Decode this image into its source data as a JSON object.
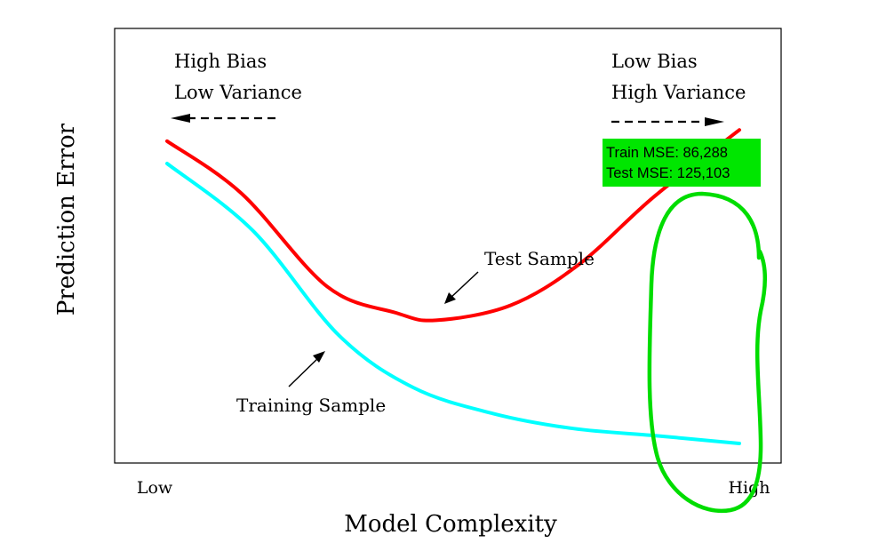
{
  "chart_data": {
    "type": "line",
    "xlabel": "Model Complexity",
    "ylabel": "Prediction Error",
    "x_ticks": [
      "Low",
      "High"
    ],
    "series": [
      {
        "name": "Test Sample",
        "color": "#ff0000",
        "points": [
          [
            0.0,
            0.86
          ],
          [
            0.13,
            0.72
          ],
          [
            0.28,
            0.47
          ],
          [
            0.4,
            0.4
          ],
          [
            0.47,
            0.38
          ],
          [
            0.6,
            0.42
          ],
          [
            0.72,
            0.53
          ],
          [
            0.85,
            0.71
          ],
          [
            1.0,
            0.89
          ]
        ]
      },
      {
        "name": "Training Sample",
        "color": "#00ffff",
        "points": [
          [
            0.0,
            0.8
          ],
          [
            0.15,
            0.62
          ],
          [
            0.3,
            0.34
          ],
          [
            0.43,
            0.2
          ],
          [
            0.57,
            0.13
          ],
          [
            0.71,
            0.09
          ],
          [
            0.86,
            0.07
          ],
          [
            1.0,
            0.05
          ]
        ]
      }
    ],
    "annotations": {
      "left_title_line1": "High Bias",
      "left_title_line2": "Low Variance",
      "right_title_line1": "Low Bias",
      "right_title_line2": "High Variance",
      "test_label": "Test Sample",
      "train_label": "Training Sample"
    },
    "mse_box": {
      "line1": "Train MSE:  86,288",
      "line2": "Test MSE: 125,103",
      "background": "#00e600"
    },
    "highlight_color": "#00dd00"
  }
}
